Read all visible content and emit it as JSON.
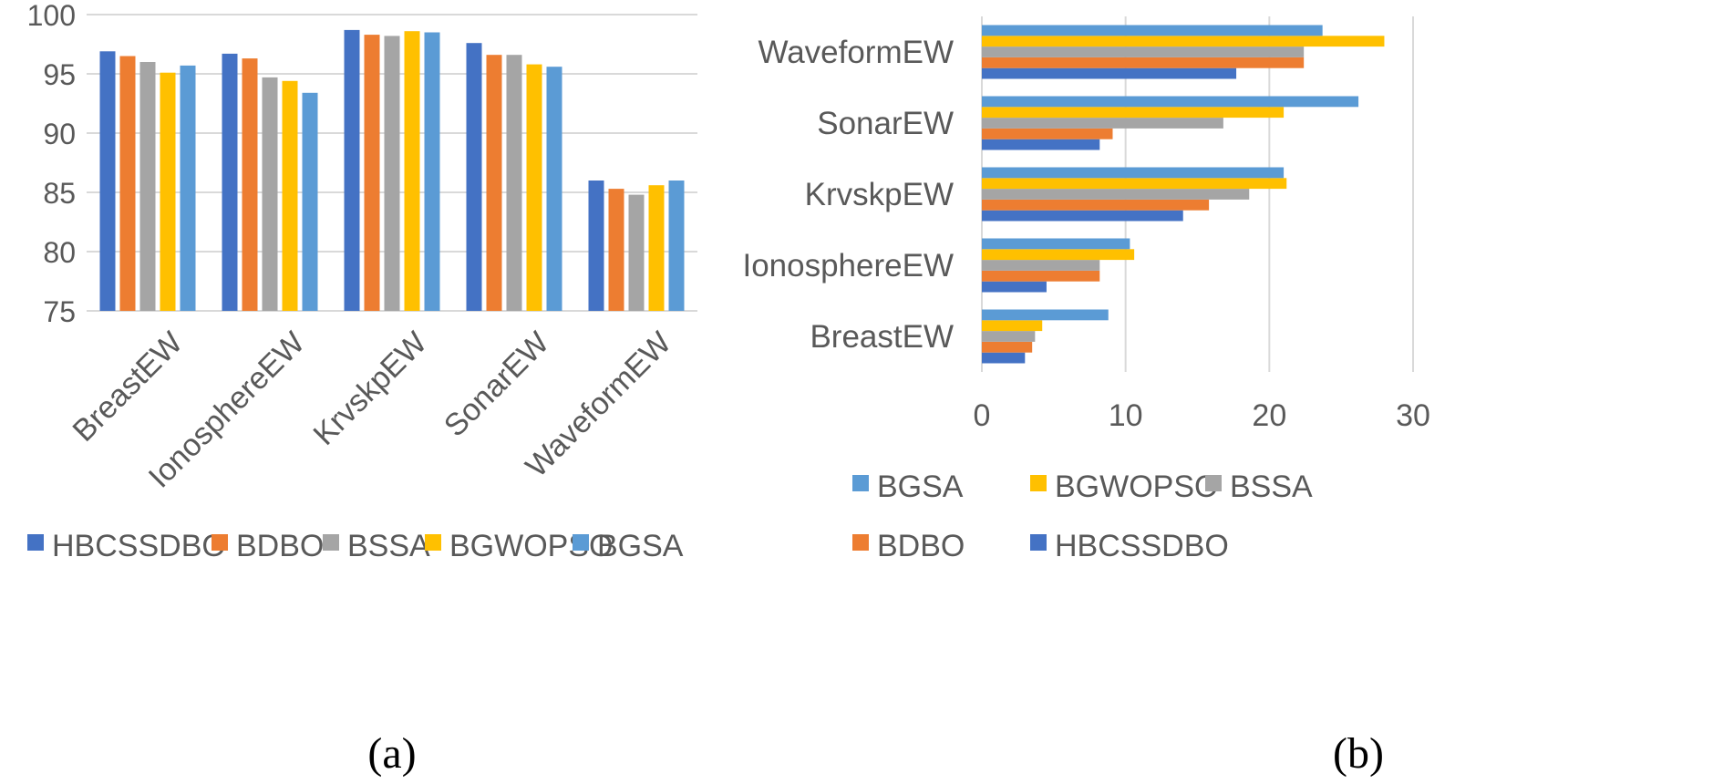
{
  "colors": {
    "HBCSSDBO": "#4472c4",
    "BDBO": "#ed7d31",
    "BSSA": "#a5a5a5",
    "BGWOPSO": "#ffc000",
    "BGSA": "#5b9bd5"
  },
  "chart_data": [
    {
      "type": "bar",
      "panel": "(a)",
      "title": "",
      "xlabel": "",
      "ylabel": "",
      "ylim": [
        75,
        100
      ],
      "yticks": [
        75,
        80,
        85,
        90,
        95,
        100
      ],
      "grid": true,
      "legend_position": "bottom",
      "categories": [
        "BreastEW",
        "IonosphereEW",
        "KrvskpEW",
        "SonarEW",
        "WaveformEW"
      ],
      "series": [
        {
          "name": "HBCSSDBO",
          "values": [
            96.9,
            96.7,
            98.7,
            97.6,
            86.0
          ]
        },
        {
          "name": "BDBO",
          "values": [
            96.5,
            96.3,
            98.3,
            96.6,
            85.3
          ]
        },
        {
          "name": "BSSA",
          "values": [
            96.0,
            94.7,
            98.2,
            96.6,
            84.8
          ]
        },
        {
          "name": "BGWOPSO",
          "values": [
            95.1,
            94.4,
            98.6,
            95.8,
            85.6
          ]
        },
        {
          "name": "BGSA",
          "values": [
            95.7,
            93.4,
            98.5,
            95.6,
            86.0
          ]
        }
      ]
    },
    {
      "type": "bar",
      "orientation": "horizontal",
      "panel": "(b)",
      "title": "",
      "xlabel": "",
      "ylabel": "",
      "xlim": [
        0,
        30
      ],
      "xticks": [
        0,
        10,
        20,
        30
      ],
      "grid": true,
      "legend_position": "bottom",
      "categories": [
        "BreastEW",
        "IonosphereEW",
        "KrvskpEW",
        "SonarEW",
        "WaveformEW"
      ],
      "series": [
        {
          "name": "HBCSSDBO",
          "values": [
            3.0,
            4.5,
            14.0,
            8.2,
            17.7
          ]
        },
        {
          "name": "BDBO",
          "values": [
            3.5,
            8.2,
            15.8,
            9.1,
            22.4
          ]
        },
        {
          "name": "BSSA",
          "values": [
            3.7,
            8.2,
            18.6,
            16.8,
            22.4
          ]
        },
        {
          "name": "BGWOPSO",
          "values": [
            4.2,
            10.6,
            21.2,
            21.0,
            28.0
          ]
        },
        {
          "name": "BGSA",
          "values": [
            8.8,
            10.3,
            21.0,
            26.2,
            23.7
          ]
        }
      ],
      "legend_order": [
        "BGSA",
        "BGWOPSO",
        "BSSA",
        "BDBO",
        "HBCSSDBO"
      ]
    }
  ],
  "captions": {
    "a": "(a)",
    "b": "(b)"
  }
}
